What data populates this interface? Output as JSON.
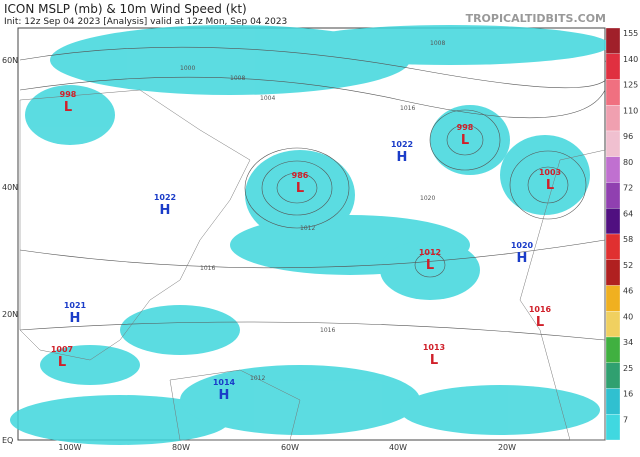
{
  "header": {
    "title": "ICON MSLP (mb) & 10m Wind Speed (kt)",
    "subtitle": "Init: 12z Sep 04 2023  [Analysis]  valid at 12z Mon, Sep 04 2023",
    "brand": "TROPICALTIDBITS.COM"
  },
  "map": {
    "lat_labels": [
      "60N",
      "40N",
      "20N",
      "EQ"
    ],
    "lon_labels": [
      "100W",
      "80W",
      "60W",
      "40W",
      "20W"
    ],
    "pressure_centers": [
      {
        "letter": "L",
        "pressure": "998"
      },
      {
        "letter": "H",
        "pressure": "1022"
      },
      {
        "letter": "L",
        "pressure": "986"
      },
      {
        "letter": "H",
        "pressure": "1022"
      },
      {
        "letter": "L",
        "pressure": "998"
      },
      {
        "letter": "L",
        "pressure": "1003"
      },
      {
        "letter": "L",
        "pressure": "1012"
      },
      {
        "letter": "H",
        "pressure": "1020"
      },
      {
        "letter": "H",
        "pressure": "1021"
      },
      {
        "letter": "L",
        "pressure": "1016"
      },
      {
        "letter": "L",
        "pressure": "1007"
      },
      {
        "letter": "L",
        "pressure": "1013"
      },
      {
        "letter": "H",
        "pressure": "1014"
      }
    ],
    "isobar_labels": [
      "1008",
      "1004",
      "1000",
      "1016",
      "1012",
      "1020",
      "1016",
      "1008",
      "1012",
      "1016"
    ]
  },
  "colorbar": {
    "labels": [
      "155",
      "140",
      "125",
      "110",
      "96",
      "80",
      "72",
      "64",
      "58",
      "52",
      "46",
      "40",
      "34",
      "25",
      "16",
      "7"
    ]
  }
}
